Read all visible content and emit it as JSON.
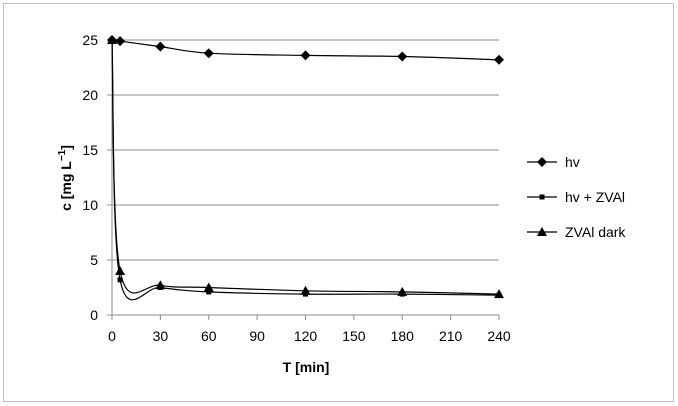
{
  "chart_data": {
    "type": "line",
    "xlabel": "T [min]",
    "ylabel": "c [mg L",
    "ylabel_superscript": "−1",
    "ylabel_suffix": "]",
    "xlim": [
      0,
      240
    ],
    "ylim": [
      0,
      25
    ],
    "x_ticks": [
      0,
      30,
      60,
      90,
      120,
      150,
      180,
      210,
      240
    ],
    "y_ticks": [
      0,
      5,
      10,
      15,
      20,
      25
    ],
    "grid": "horizontal",
    "legend_position": "right",
    "series": [
      {
        "name": "hv",
        "marker": "diamond",
        "color": "#000000",
        "x": [
          0,
          5,
          30,
          60,
          120,
          180,
          240
        ],
        "y": [
          25.0,
          24.9,
          24.4,
          23.8,
          23.6,
          23.5,
          23.2
        ]
      },
      {
        "name": "hv + ZVAl",
        "marker": "square",
        "color": "#000000",
        "x": [
          0,
          5,
          30,
          60,
          120,
          180,
          240
        ],
        "y": [
          25.0,
          3.2,
          2.5,
          2.1,
          1.9,
          1.9,
          1.8
        ]
      },
      {
        "name": "ZVAl dark",
        "marker": "triangle",
        "color": "#000000",
        "x": [
          0,
          5,
          30,
          60,
          120,
          180,
          240
        ],
        "y": [
          25.0,
          4.0,
          2.7,
          2.5,
          2.2,
          2.1,
          1.9
        ]
      }
    ]
  }
}
